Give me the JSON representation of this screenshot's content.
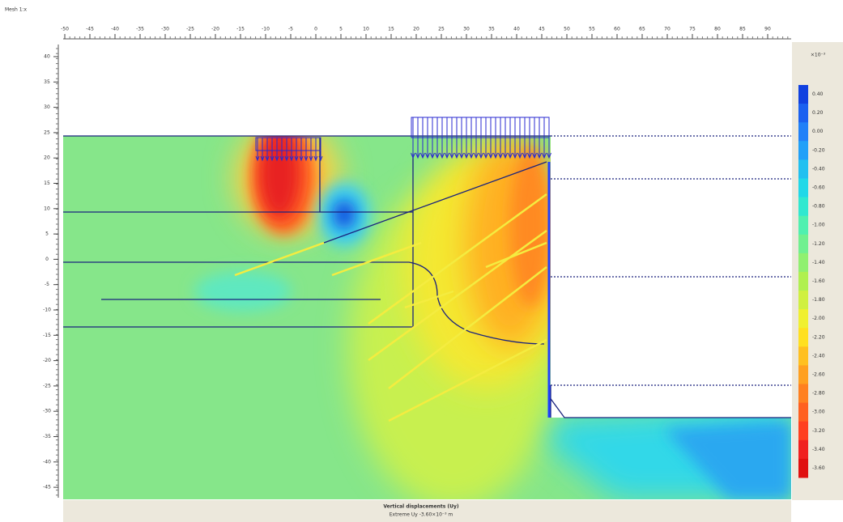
{
  "window_label": "Mesh 1:x",
  "ruler": {
    "top": [
      "-50",
      "-45",
      "-40",
      "-35",
      "-30",
      "-25",
      "-20",
      "-15",
      "-10",
      "-5",
      "0",
      "5",
      "10",
      "15",
      "20",
      "25",
      "30",
      "35",
      "40",
      "45",
      "50",
      "55",
      "60",
      "65",
      "70",
      "75",
      "80",
      "85",
      "90"
    ],
    "left": [
      "40",
      "35",
      "30",
      "25",
      "20",
      "15",
      "10",
      "5",
      "0",
      "-5",
      "-10",
      "-15",
      "-20",
      "-25",
      "-30",
      "-35",
      "-40",
      "-45"
    ]
  },
  "legend": {
    "title": "×10⁻³",
    "labels": [
      "0.40",
      "0.20",
      "0.00",
      "-0.20",
      "-0.40",
      "-0.60",
      "-0.80",
      "-1.00",
      "-1.20",
      "-1.40",
      "-1.60",
      "-1.80",
      "-2.00",
      "-2.20",
      "-2.40",
      "-2.60",
      "-2.80",
      "-3.00",
      "-3.20",
      "-3.40",
      "-3.60"
    ],
    "colors": [
      "#1040e0",
      "#1a60f0",
      "#2080f8",
      "#20a0f8",
      "#20c0f0",
      "#20d8e8",
      "#30e8d0",
      "#50f0b0",
      "#70f090",
      "#90f070",
      "#b0f050",
      "#d0f040",
      "#f0f030",
      "#ffe020",
      "#ffc020",
      "#ffa020",
      "#ff8020",
      "#ff6020",
      "#ff4020",
      "#f02020",
      "#e01010"
    ]
  },
  "caption": {
    "line1": "Vertical displacements (Uy)",
    "line2": "Extreme Uy -3.60×10⁻³ m"
  }
}
